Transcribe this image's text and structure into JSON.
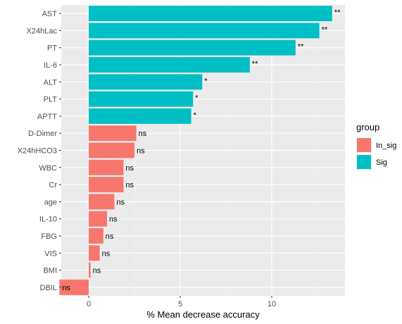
{
  "chart_data": {
    "type": "bar",
    "orientation": "horizontal",
    "xlabel": "% Mean decrease accuracy",
    "xlim": [
      -1.5,
      14
    ],
    "xticks": [
      0,
      5,
      10
    ],
    "legend": {
      "title": "group",
      "placement": "right",
      "entries": [
        {
          "name": "In_sig",
          "color": "#F8766D"
        },
        {
          "name": "Sig",
          "color": "#00BFC4"
        }
      ]
    },
    "grid": true,
    "panel_background": "#EBEBEB",
    "categories": [
      "AST",
      "X24hLac",
      "PT",
      "IL-6",
      "ALT",
      "PLT",
      "APTT",
      "D-Dimer",
      "X24hHCO3",
      "WBC",
      "Cr",
      "age",
      "IL-10",
      "FBG",
      "VIS",
      "BMI",
      "DBIL"
    ],
    "values": [
      13.3,
      12.6,
      11.3,
      8.8,
      6.2,
      5.7,
      5.6,
      2.6,
      2.5,
      1.9,
      1.9,
      1.4,
      1.0,
      0.8,
      0.6,
      0.1,
      -1.6
    ],
    "groups": [
      "Sig",
      "Sig",
      "Sig",
      "Sig",
      "Sig",
      "Sig",
      "Sig",
      "In_sig",
      "In_sig",
      "In_sig",
      "In_sig",
      "In_sig",
      "In_sig",
      "In_sig",
      "In_sig",
      "In_sig",
      "In_sig"
    ],
    "labels": [
      "**",
      "**",
      "**",
      "**",
      "*",
      "*",
      "*",
      "ns",
      "ns",
      "ns",
      "ns",
      "ns",
      "ns",
      "ns",
      "ns",
      "ns",
      "ns"
    ]
  }
}
